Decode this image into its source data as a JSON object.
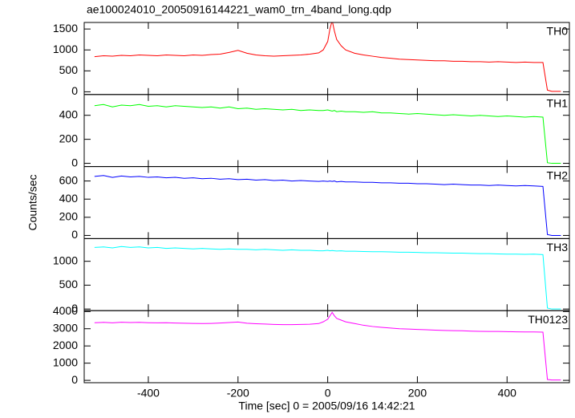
{
  "chart_data": [
    {
      "type": "line",
      "title": "ae100024010_20050916144221_wam0_trn_4band_long.qdp",
      "label": "TH0",
      "color": "#ff0000",
      "x": [
        -520,
        -500,
        -480,
        -460,
        -440,
        -420,
        -400,
        -380,
        -360,
        -340,
        -320,
        -300,
        -280,
        -260,
        -240,
        -220,
        -200,
        -180,
        -160,
        -140,
        -120,
        -100,
        -80,
        -60,
        -40,
        -20,
        -10,
        0,
        5,
        10,
        15,
        20,
        30,
        40,
        60,
        80,
        100,
        120,
        140,
        160,
        180,
        200,
        220,
        240,
        260,
        280,
        300,
        320,
        340,
        360,
        380,
        400,
        420,
        440,
        460,
        480,
        490,
        500,
        520
      ],
      "values": [
        840,
        860,
        850,
        870,
        860,
        880,
        870,
        860,
        880,
        870,
        860,
        880,
        870,
        890,
        900,
        940,
        990,
        920,
        880,
        860,
        850,
        860,
        870,
        880,
        900,
        930,
        1000,
        1200,
        1500,
        1700,
        1450,
        1250,
        1100,
        1000,
        920,
        880,
        850,
        820,
        800,
        780,
        770,
        760,
        750,
        740,
        740,
        730,
        730,
        720,
        720,
        710,
        720,
        710,
        700,
        710,
        700,
        700,
        40,
        10,
        10
      ],
      "xlim": [
        -543,
        539
      ],
      "ylim": [
        -65,
        1656
      ],
      "yticks": [
        0,
        500,
        1000,
        1500
      ]
    },
    {
      "type": "line",
      "label": "TH1",
      "color": "#00ff00",
      "x": [
        -520,
        -500,
        -480,
        -460,
        -440,
        -420,
        -400,
        -380,
        -360,
        -340,
        -320,
        -300,
        -280,
        -260,
        -240,
        -220,
        -200,
        -180,
        -160,
        -140,
        -120,
        -100,
        -80,
        -60,
        -40,
        -20,
        -10,
        0,
        5,
        10,
        15,
        20,
        30,
        40,
        60,
        80,
        100,
        120,
        140,
        160,
        180,
        200,
        220,
        240,
        260,
        280,
        300,
        320,
        340,
        360,
        380,
        400,
        420,
        440,
        460,
        480,
        490,
        500,
        520
      ],
      "values": [
        480,
        490,
        470,
        485,
        480,
        490,
        475,
        480,
        470,
        480,
        475,
        470,
        465,
        470,
        460,
        470,
        455,
        460,
        450,
        455,
        450,
        445,
        450,
        440,
        445,
        440,
        440,
        445,
        440,
        435,
        440,
        430,
        435,
        430,
        430,
        425,
        430,
        420,
        420,
        415,
        410,
        415,
        410,
        405,
        400,
        405,
        400,
        395,
        400,
        395,
        390,
        395,
        390,
        385,
        390,
        385,
        5,
        0,
        0
      ],
      "xlim": [
        -543,
        539
      ],
      "ylim": [
        -27,
        573
      ],
      "yticks": [
        0,
        200,
        400
      ]
    },
    {
      "type": "line",
      "label": "TH2",
      "color": "#0000ff",
      "ylabel": "Counts/sec",
      "x": [
        -520,
        -500,
        -480,
        -460,
        -440,
        -420,
        -400,
        -380,
        -360,
        -340,
        -320,
        -300,
        -280,
        -260,
        -240,
        -220,
        -200,
        -180,
        -160,
        -140,
        -120,
        -100,
        -80,
        -60,
        -40,
        -20,
        -10,
        0,
        5,
        10,
        15,
        20,
        30,
        40,
        60,
        80,
        100,
        120,
        140,
        160,
        180,
        200,
        220,
        240,
        260,
        280,
        300,
        320,
        340,
        360,
        380,
        400,
        420,
        440,
        460,
        480,
        490,
        500,
        520
      ],
      "values": [
        650,
        660,
        640,
        655,
        645,
        650,
        640,
        645,
        635,
        640,
        630,
        635,
        625,
        630,
        620,
        625,
        615,
        620,
        610,
        615,
        605,
        610,
        600,
        605,
        600,
        595,
        600,
        595,
        600,
        595,
        600,
        590,
        595,
        590,
        590,
        585,
        585,
        580,
        580,
        575,
        575,
        570,
        570,
        565,
        560,
        565,
        560,
        555,
        555,
        550,
        555,
        550,
        545,
        550,
        545,
        540,
        10,
        0,
        0
      ],
      "xlim": [
        -543,
        539
      ],
      "ylim": [
        -35,
        759
      ],
      "yticks": [
        0,
        200,
        400,
        600
      ]
    },
    {
      "type": "line",
      "label": "TH3",
      "color": "#00ffff",
      "x": [
        -520,
        -500,
        -480,
        -460,
        -440,
        -420,
        -400,
        -380,
        -360,
        -340,
        -320,
        -300,
        -280,
        -260,
        -240,
        -220,
        -200,
        -180,
        -160,
        -140,
        -120,
        -100,
        -80,
        -60,
        -40,
        -20,
        -10,
        0,
        5,
        10,
        15,
        20,
        30,
        40,
        60,
        80,
        100,
        120,
        140,
        160,
        180,
        200,
        220,
        240,
        260,
        280,
        300,
        320,
        340,
        360,
        380,
        400,
        420,
        440,
        460,
        480,
        490,
        500,
        520
      ],
      "values": [
        1290,
        1300,
        1280,
        1310,
        1290,
        1300,
        1280,
        1290,
        1270,
        1280,
        1270,
        1260,
        1270,
        1260,
        1250,
        1260,
        1250,
        1250,
        1240,
        1250,
        1240,
        1230,
        1240,
        1230,
        1230,
        1220,
        1220,
        1230,
        1220,
        1225,
        1220,
        1215,
        1220,
        1210,
        1210,
        1205,
        1200,
        1200,
        1195,
        1190,
        1190,
        1185,
        1180,
        1180,
        1175,
        1170,
        1170,
        1165,
        1160,
        1160,
        1155,
        1150,
        1150,
        1145,
        1150,
        1140,
        20,
        0,
        0
      ],
      "xlim": [
        -543,
        539
      ],
      "ylim": [
        -34,
        1475
      ],
      "yticks": [
        0,
        500,
        1000
      ]
    },
    {
      "type": "line",
      "label": "TH0123",
      "color": "#ff00ff",
      "xlabel": "Time [sec] 0 = 2005/09/16 14:42:21",
      "x": [
        -520,
        -500,
        -480,
        -460,
        -440,
        -420,
        -400,
        -380,
        -360,
        -340,
        -320,
        -300,
        -280,
        -260,
        -240,
        -220,
        -200,
        -180,
        -160,
        -140,
        -120,
        -100,
        -80,
        -60,
        -40,
        -20,
        -10,
        0,
        5,
        10,
        15,
        20,
        30,
        40,
        60,
        80,
        100,
        120,
        140,
        160,
        180,
        200,
        220,
        240,
        260,
        280,
        300,
        320,
        340,
        360,
        380,
        400,
        420,
        440,
        460,
        480,
        490,
        500,
        520
      ],
      "values": [
        3350,
        3370,
        3340,
        3380,
        3360,
        3370,
        3350,
        3340,
        3350,
        3330,
        3320,
        3310,
        3300,
        3310,
        3330,
        3360,
        3390,
        3320,
        3290,
        3270,
        3250,
        3240,
        3240,
        3250,
        3260,
        3300,
        3400,
        3550,
        3750,
        3950,
        3750,
        3600,
        3500,
        3400,
        3300,
        3200,
        3130,
        3080,
        3040,
        3000,
        2980,
        2960,
        2940,
        2920,
        2900,
        2890,
        2880,
        2860,
        2850,
        2840,
        2840,
        2830,
        2820,
        2810,
        2810,
        2800,
        50,
        20,
        20
      ],
      "xlim": [
        -543,
        539
      ],
      "ylim": [
        -136,
        4050
      ],
      "yticks": [
        0,
        1000,
        2000,
        3000,
        4000
      ],
      "xticks": [
        -400,
        -200,
        0,
        200,
        400
      ]
    }
  ]
}
